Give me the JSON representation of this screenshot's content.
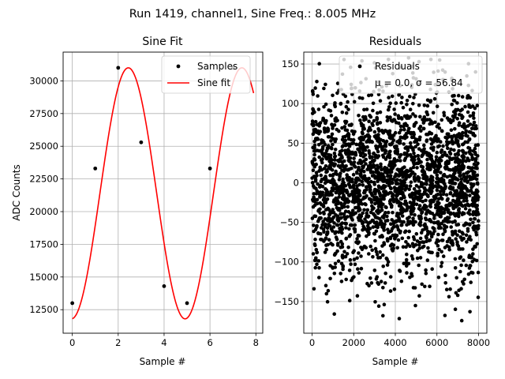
{
  "suptitle": "Run 1419, channel1, Sine Freq.: 8.005 MHz",
  "chart_data": [
    {
      "type": "line",
      "title": "Sine Fit",
      "xlabel": "Sample #",
      "ylabel": "ADC Counts",
      "xlim": [
        -0.4,
        8.3
      ],
      "ylim": [
        10700,
        32200
      ],
      "xticks": [
        0,
        2,
        4,
        6,
        8
      ],
      "yticks": [
        12500,
        15000,
        17500,
        20000,
        22500,
        25000,
        27500,
        30000
      ],
      "grid": true,
      "legend": {
        "placement": "top-right",
        "entries": [
          "Samples",
          "Sine fit"
        ]
      },
      "series": [
        {
          "name": "Samples",
          "kind": "scatter",
          "color": "#000000",
          "x": [
            0,
            1,
            2,
            3,
            4,
            5,
            6,
            7
          ],
          "y": [
            13000,
            23300,
            31000,
            25300,
            14300,
            13000,
            23300,
            31000
          ]
        },
        {
          "name": "Sine fit",
          "kind": "line",
          "color": "#ff0000",
          "model": {
            "offset": 21400,
            "amplitude": 9600,
            "samples_per_cycle": 4.95,
            "phase_deg": -87.5
          },
          "x_range": [
            0,
            7.9
          ]
        }
      ]
    },
    {
      "type": "scatter",
      "title": "Residuals",
      "xlabel": "Sample #",
      "ylabel": "",
      "xlim": [
        -400,
        8400
      ],
      "ylim": [
        -190,
        165
      ],
      "xticks": [
        0,
        2000,
        4000,
        6000,
        8000
      ],
      "yticks": [
        -150,
        -100,
        -50,
        0,
        50,
        100,
        150
      ],
      "grid": true,
      "legend": {
        "placement": "top-right",
        "entries": [
          "Residuals",
          "μ = 0.0, σ = 56.84"
        ]
      },
      "series": [
        {
          "name": "Residuals",
          "color": "#000000",
          "x_range": [
            0,
            8000
          ],
          "mean": 0.0,
          "sigma": 56.84,
          "min": -175,
          "max": 160,
          "n": 8000
        }
      ]
    }
  ]
}
